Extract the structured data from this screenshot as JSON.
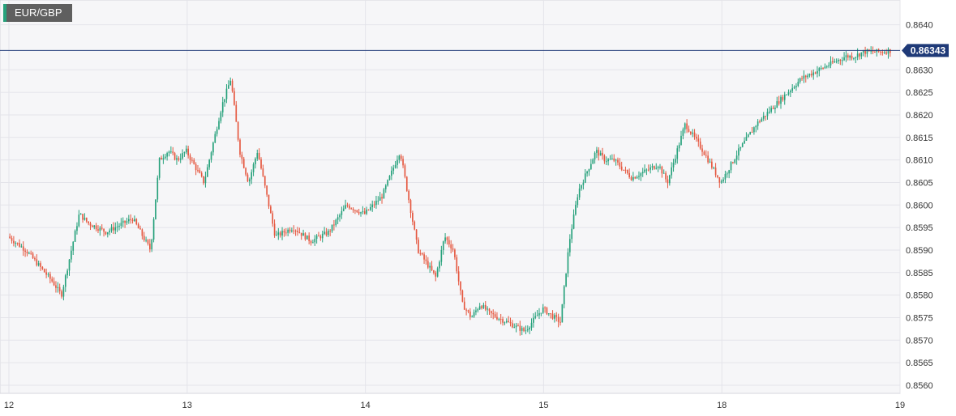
{
  "symbol": "EUR/GBP",
  "chart_data": {
    "type": "candlestick",
    "title": "EUR/GBP",
    "current_price": 0.86343,
    "current_price_label": "0.86343",
    "y_ticks": [
      "0.8560",
      "0.8565",
      "0.8570",
      "0.8575",
      "0.8580",
      "0.8585",
      "0.8590",
      "0.8595",
      "0.8600",
      "0.8605",
      "0.8610",
      "0.8615",
      "0.8620",
      "0.8625",
      "0.8630",
      "0.8640"
    ],
    "y_tick_values": [
      0.856,
      0.8565,
      0.857,
      0.8575,
      0.858,
      0.8585,
      0.859,
      0.8595,
      0.86,
      0.8605,
      0.861,
      0.8615,
      0.862,
      0.8625,
      0.863,
      0.864
    ],
    "ylim": [
      0.85582,
      0.86455
    ],
    "x_ticks": [
      "12",
      "13",
      "14",
      "15",
      "18",
      "19"
    ],
    "x_tick_positions": [
      0,
      1,
      2,
      3,
      4,
      5
    ],
    "xlim": [
      -0.05,
      5.0
    ],
    "grid": true,
    "colors": {
      "up": "#26a17b",
      "down": "#e5573f",
      "price_line": "#1f3a78",
      "price_tag": "#1f3a78"
    },
    "series": [
      {
        "x": [
          0.0,
          0.1,
          0.25,
          0.3,
          0.4,
          0.45,
          0.55,
          0.7,
          0.8,
          0.85,
          0.9,
          0.95,
          1.0,
          1.1,
          1.2,
          1.25,
          1.3,
          1.35,
          1.4,
          1.5,
          1.6,
          1.7,
          1.8,
          1.9,
          2.0,
          2.1,
          2.2,
          2.3,
          2.4,
          2.45,
          2.5,
          2.55,
          2.6,
          2.65,
          2.7,
          2.8,
          2.9,
          3.0,
          3.1,
          3.15,
          3.2,
          3.3,
          3.35,
          3.4,
          3.45,
          3.5,
          3.6,
          3.65,
          3.7,
          3.8,
          3.9,
          4.0,
          4.1,
          4.2,
          4.3,
          4.35,
          4.4,
          4.45,
          4.5,
          4.55,
          4.6,
          4.65,
          4.7,
          4.75,
          4.8,
          4.85,
          4.9,
          4.95
        ],
        "y": [
          0.8593,
          0.859,
          0.8583,
          0.858,
          0.8598,
          0.8596,
          0.8594,
          0.8597,
          0.859,
          0.861,
          0.8612,
          0.861,
          0.8612,
          0.8605,
          0.8622,
          0.8628,
          0.8612,
          0.8605,
          0.8612,
          0.8593,
          0.8595,
          0.8592,
          0.8594,
          0.86,
          0.8598,
          0.8602,
          0.8612,
          0.859,
          0.8584,
          0.8593,
          0.859,
          0.8578,
          0.8575,
          0.8578,
          0.8576,
          0.8574,
          0.8572,
          0.8577,
          0.8574,
          0.8592,
          0.8603,
          0.8612,
          0.861,
          0.861,
          0.8608,
          0.8606,
          0.8608,
          0.8609,
          0.8605,
          0.8618,
          0.8612,
          0.8605,
          0.8612,
          0.8618,
          0.8622,
          0.8624,
          0.8626,
          0.8628,
          0.8629,
          0.863,
          0.8631,
          0.8632,
          0.8633,
          0.8633,
          0.8634,
          0.8634,
          0.8634,
          0.86343
        ]
      }
    ]
  }
}
